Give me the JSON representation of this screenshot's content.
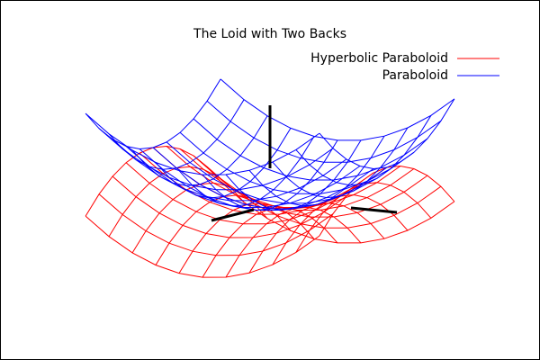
{
  "chart_data": {
    "type": "surface",
    "title": "The Loid with Two Backs",
    "x": [
      -1,
      -0.8,
      -0.6,
      -0.4,
      -0.2,
      0,
      0.2,
      0.4,
      0.6,
      0.8,
      1
    ],
    "y": [
      -1,
      -0.8,
      -0.6,
      -0.4,
      -0.2,
      0,
      0.2,
      0.4,
      0.6,
      0.8,
      1
    ],
    "series": [
      {
        "name": "Hyperbolic Paraboloid",
        "color": "#ff0000",
        "values": [
          [
            0,
            -0.36,
            -0.64,
            -0.84,
            -0.96,
            -1,
            -0.96,
            -0.84,
            -0.64,
            -0.36,
            0
          ],
          [
            0.36,
            0,
            -0.28,
            -0.48,
            -0.6,
            -0.64,
            -0.6,
            -0.48,
            -0.28,
            0,
            0.36
          ],
          [
            0.64,
            0.28,
            0,
            -0.2,
            -0.32,
            -0.36,
            -0.32,
            -0.2,
            0,
            0.28,
            0.64
          ],
          [
            0.84,
            0.48,
            0.2,
            0,
            -0.12,
            -0.16,
            -0.12,
            0,
            0.2,
            0.48,
            0.84
          ],
          [
            0.96,
            0.6,
            0.32,
            0.12,
            0,
            -0.04,
            0,
            0.12,
            0.32,
            0.6,
            0.96
          ],
          [
            1,
            0.64,
            0.36,
            0.16,
            0.04,
            0,
            0.04,
            0.16,
            0.36,
            0.64,
            1
          ],
          [
            0.96,
            0.6,
            0.32,
            0.12,
            0,
            -0.04,
            0,
            0.12,
            0.32,
            0.6,
            0.96
          ],
          [
            0.84,
            0.48,
            0.2,
            0,
            -0.12,
            -0.16,
            -0.12,
            0,
            0.2,
            0.48,
            0.84
          ],
          [
            0.64,
            0.28,
            0,
            -0.2,
            -0.32,
            -0.36,
            -0.32,
            -0.2,
            0,
            0.28,
            0.64
          ],
          [
            0.36,
            0,
            -0.28,
            -0.48,
            -0.6,
            -0.64,
            -0.6,
            -0.48,
            -0.28,
            0,
            0.36
          ],
          [
            0,
            -0.36,
            -0.64,
            -0.84,
            -0.96,
            -1,
            -0.96,
            -0.84,
            -0.64,
            -0.36,
            0
          ]
        ]
      },
      {
        "name": "Paraboloid",
        "color": "#0000ff",
        "values": [
          [
            2,
            1.64,
            1.36,
            1.16,
            1.04,
            1,
            1.04,
            1.16,
            1.36,
            1.64,
            2
          ],
          [
            1.64,
            1.28,
            1,
            0.8,
            0.68,
            0.64,
            0.68,
            0.8,
            1,
            1.28,
            1.64
          ],
          [
            1.36,
            1,
            0.72,
            0.52,
            0.4,
            0.36,
            0.4,
            0.52,
            0.72,
            1,
            1.36
          ],
          [
            1.16,
            0.8,
            0.52,
            0.32,
            0.2,
            0.16,
            0.2,
            0.32,
            0.52,
            0.8,
            1.16
          ],
          [
            1.04,
            0.68,
            0.4,
            0.2,
            0.08,
            0.04,
            0.08,
            0.2,
            0.4,
            0.68,
            1.04
          ],
          [
            1,
            0.64,
            0.36,
            0.16,
            0.04,
            0,
            0.04,
            0.16,
            0.36,
            0.64,
            1
          ],
          [
            1.04,
            0.68,
            0.4,
            0.2,
            0.08,
            0.04,
            0.08,
            0.2,
            0.4,
            0.68,
            1.04
          ],
          [
            1.16,
            0.8,
            0.52,
            0.32,
            0.2,
            0.16,
            0.2,
            0.32,
            0.52,
            0.8,
            1.16
          ],
          [
            1.36,
            1,
            0.72,
            0.52,
            0.4,
            0.36,
            0.4,
            0.52,
            0.72,
            1,
            1.36
          ],
          [
            1.64,
            1.28,
            1,
            0.8,
            0.68,
            0.64,
            0.68,
            0.8,
            1,
            1.28,
            1.64
          ],
          [
            2,
            1.64,
            1.36,
            1.16,
            1.04,
            1,
            1.04,
            1.16,
            1.36,
            1.64,
            2
          ]
        ]
      }
    ]
  }
}
